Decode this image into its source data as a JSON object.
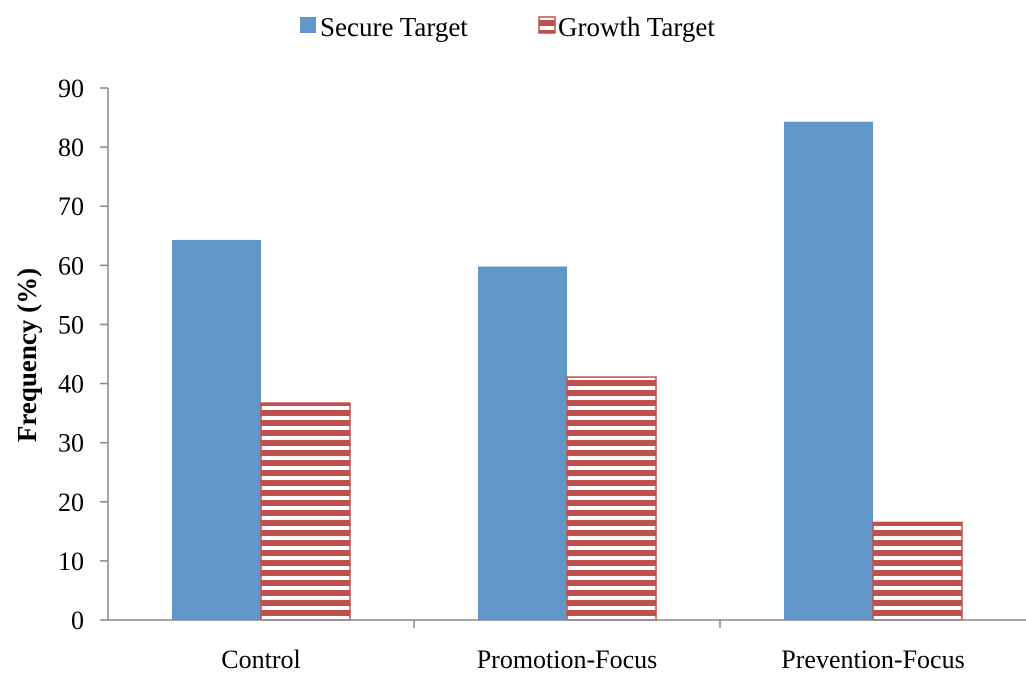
{
  "chart_data": {
    "type": "bar",
    "title": "",
    "xlabel": "",
    "ylabel": "Frequency (%)",
    "categories": [
      "Control",
      "Promotion-Focus",
      "Prevention-Focus"
    ],
    "ylim": [
      0,
      90
    ],
    "yticks": [
      0,
      10,
      20,
      30,
      40,
      50,
      60,
      70,
      80,
      90
    ],
    "grid": false,
    "legend_position": "top-center",
    "series": [
      {
        "name": "Secure Target",
        "values": [
          64.3,
          59.8,
          84.3
        ],
        "color": "#6096C8",
        "pattern": "solid"
      },
      {
        "name": "Growth Target",
        "values": [
          36.7,
          41.1,
          16.5
        ],
        "color": "#C0504D",
        "pattern": "horizontal-stripes"
      }
    ]
  }
}
